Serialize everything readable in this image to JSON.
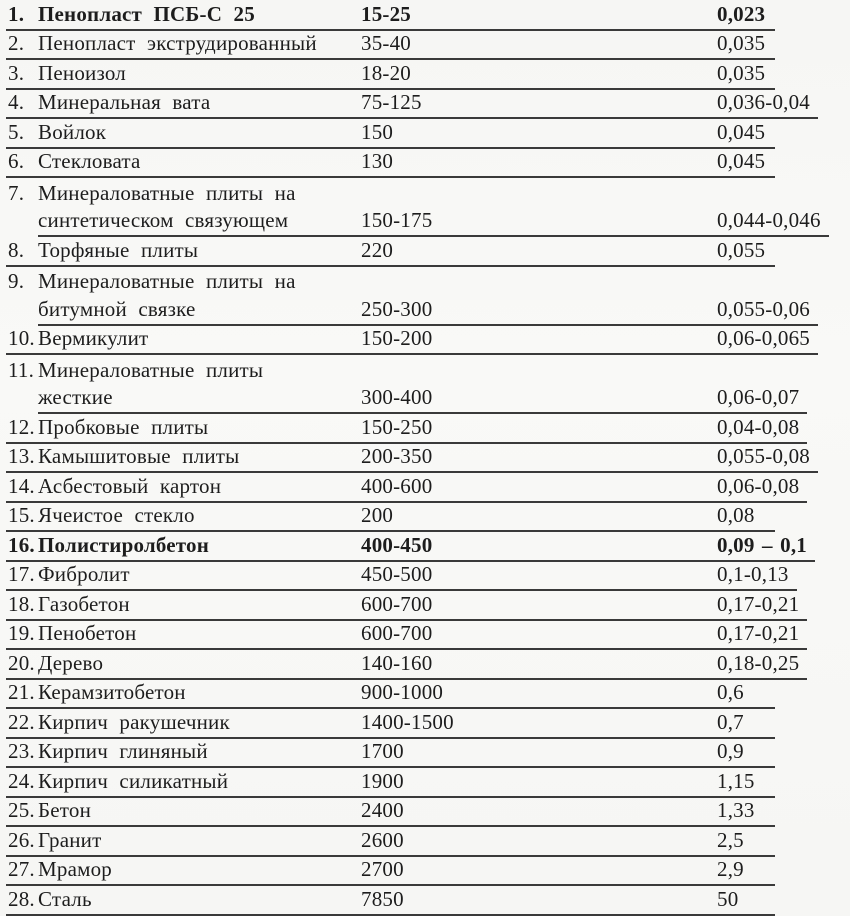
{
  "page": {
    "background": "#f7f7f5",
    "text_color": "#1d1d1d",
    "rule_color": "#3a3a3a",
    "description": "scanned-table-of-material-densities-and-thermal-conductivities"
  },
  "table": {
    "rows": [
      {
        "num": "1.",
        "name": "Пенопласт ПСБ-С 25",
        "density": "15-25",
        "lambda": "0,023",
        "bold": true
      },
      {
        "num": "2.",
        "name": "Пенопласт экструдированный",
        "density": "35-40",
        "lambda": "0,035",
        "bold": false
      },
      {
        "num": "3.",
        "name": "Пеноизол",
        "density": "18-20",
        "lambda": "0,035",
        "bold": false
      },
      {
        "num": "4.",
        "name": "Минеральная вата",
        "density": "75-125",
        "lambda": "0,036-0,04",
        "bold": false
      },
      {
        "num": "5.",
        "name": "Войлок",
        "density": "150",
        "lambda": "0,045",
        "bold": false
      },
      {
        "num": "6.",
        "name": "Стекловата",
        "density": "130",
        "lambda": "0,045",
        "bold": false
      },
      {
        "num": "7.",
        "name": "Минераловатные плиты на",
        "name2": "синтетическом связующем",
        "density": "150-175",
        "lambda": "0,044-0,046",
        "bold": false
      },
      {
        "num": "8.",
        "name": "Торфяные плиты",
        "density": "220",
        "lambda": "0,055",
        "bold": false
      },
      {
        "num": "9.",
        "name": "Минераловатные плиты на",
        "name2": "битумной связке",
        "density": "250-300",
        "lambda": "0,055-0,06",
        "bold": false
      },
      {
        "num": "10.",
        "name": "Вермикулит",
        "density": "150-200",
        "lambda": "0,06-0,065",
        "bold": false
      },
      {
        "num": "11.",
        "name": "Минераловатные плиты",
        "name2": "жесткие",
        "density": "300-400",
        "lambda": "0,06-0,07",
        "bold": false
      },
      {
        "num": "12.",
        "name": "Пробковые плиты",
        "density": "150-250",
        "lambda": "0,04-0,08",
        "bold": false
      },
      {
        "num": "13.",
        "name": "Камышитовые плиты",
        "density": "200-350",
        "lambda": "0,055-0,08",
        "bold": false
      },
      {
        "num": "14.",
        "name": "Асбестовый картон",
        "density": "400-600",
        "lambda": "0,06-0,08",
        "bold": false
      },
      {
        "num": "15.",
        "name": "Ячеистое стекло",
        "density": "200",
        "lambda": "0,08",
        "bold": false
      },
      {
        "num": "16.",
        "name": "Полистиролбетон",
        "density": "400-450",
        "lambda": "0,09 – 0,1",
        "bold": true
      },
      {
        "num": "17.",
        "name": "Фибролит",
        "density": "450-500",
        "lambda": "0,1-0,13",
        "bold": false
      },
      {
        "num": "18.",
        "name": "Газобетон",
        "density": "600-700",
        "lambda": "0,17-0,21",
        "bold": false
      },
      {
        "num": "19.",
        "name": "Пенобетон",
        "density": "600-700",
        "lambda": "0,17-0,21",
        "bold": false
      },
      {
        "num": "20.",
        "name": "Дерево",
        "density": "140-160",
        "lambda": "0,18-0,25",
        "bold": false
      },
      {
        "num": "21.",
        "name": "Керамзитобетон",
        "density": "900-1000",
        "lambda": "0,6",
        "bold": false
      },
      {
        "num": "22.",
        "name": "Кирпич ракушечник",
        "density": "1400-1500",
        "lambda": "0,7",
        "bold": false
      },
      {
        "num": "23.",
        "name": "Кирпич глиняный",
        "density": "1700",
        "lambda": "0,9",
        "bold": false
      },
      {
        "num": "24.",
        "name": "Кирпич силикатный",
        "density": "1900",
        "lambda": "1,15",
        "bold": false
      },
      {
        "num": "25.",
        "name": "Бетон",
        "density": "2400",
        "lambda": "1,33",
        "bold": false
      },
      {
        "num": "26.",
        "name": "Гранит",
        "density": "2600",
        "lambda": "2,5",
        "bold": false
      },
      {
        "num": "27.",
        "name": "Мрамор",
        "density": "2700",
        "lambda": "2,9",
        "bold": false
      },
      {
        "num": "28.",
        "name": "Сталь",
        "density": "7850",
        "lambda": "50",
        "bold": false
      }
    ]
  }
}
